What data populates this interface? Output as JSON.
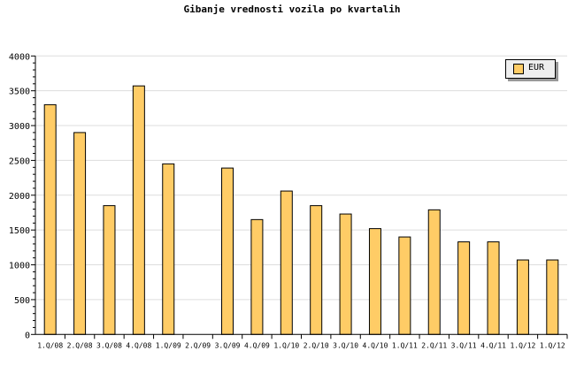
{
  "chart_data": {
    "type": "bar",
    "title": "Gibanje vrednosti vozila po kvartalih",
    "xlabel": "",
    "ylabel": "",
    "categories": [
      "1.Q/08",
      "2.Q/08",
      "3.Q/08",
      "4.Q/08",
      "1.Q/09",
      "2.Q/09",
      "3.Q/09",
      "4.Q/09",
      "1.Q/10",
      "2.Q/10",
      "3.Q/10",
      "4.Q/10",
      "1.Q/11",
      "2.Q/11",
      "3.Q/11",
      "4.Q/11",
      "1.Q/12",
      "1.Q/12"
    ],
    "series": [
      {
        "name": "EUR",
        "values": [
          3300,
          2900,
          1850,
          3570,
          2450,
          0,
          2390,
          1650,
          2060,
          1850,
          1730,
          1520,
          1400,
          1790,
          1330,
          1330,
          1070,
          1070
        ]
      }
    ],
    "ylim": [
      0,
      4000
    ],
    "yticks": [
      0,
      500,
      1000,
      1500,
      2000,
      2500,
      3000,
      3500,
      4000
    ],
    "grid": true,
    "legend_position": "top-right",
    "colors": {
      "bar": "#ffcc66",
      "grid": "#dddddd",
      "legend_bg": "#eeeeee"
    }
  }
}
